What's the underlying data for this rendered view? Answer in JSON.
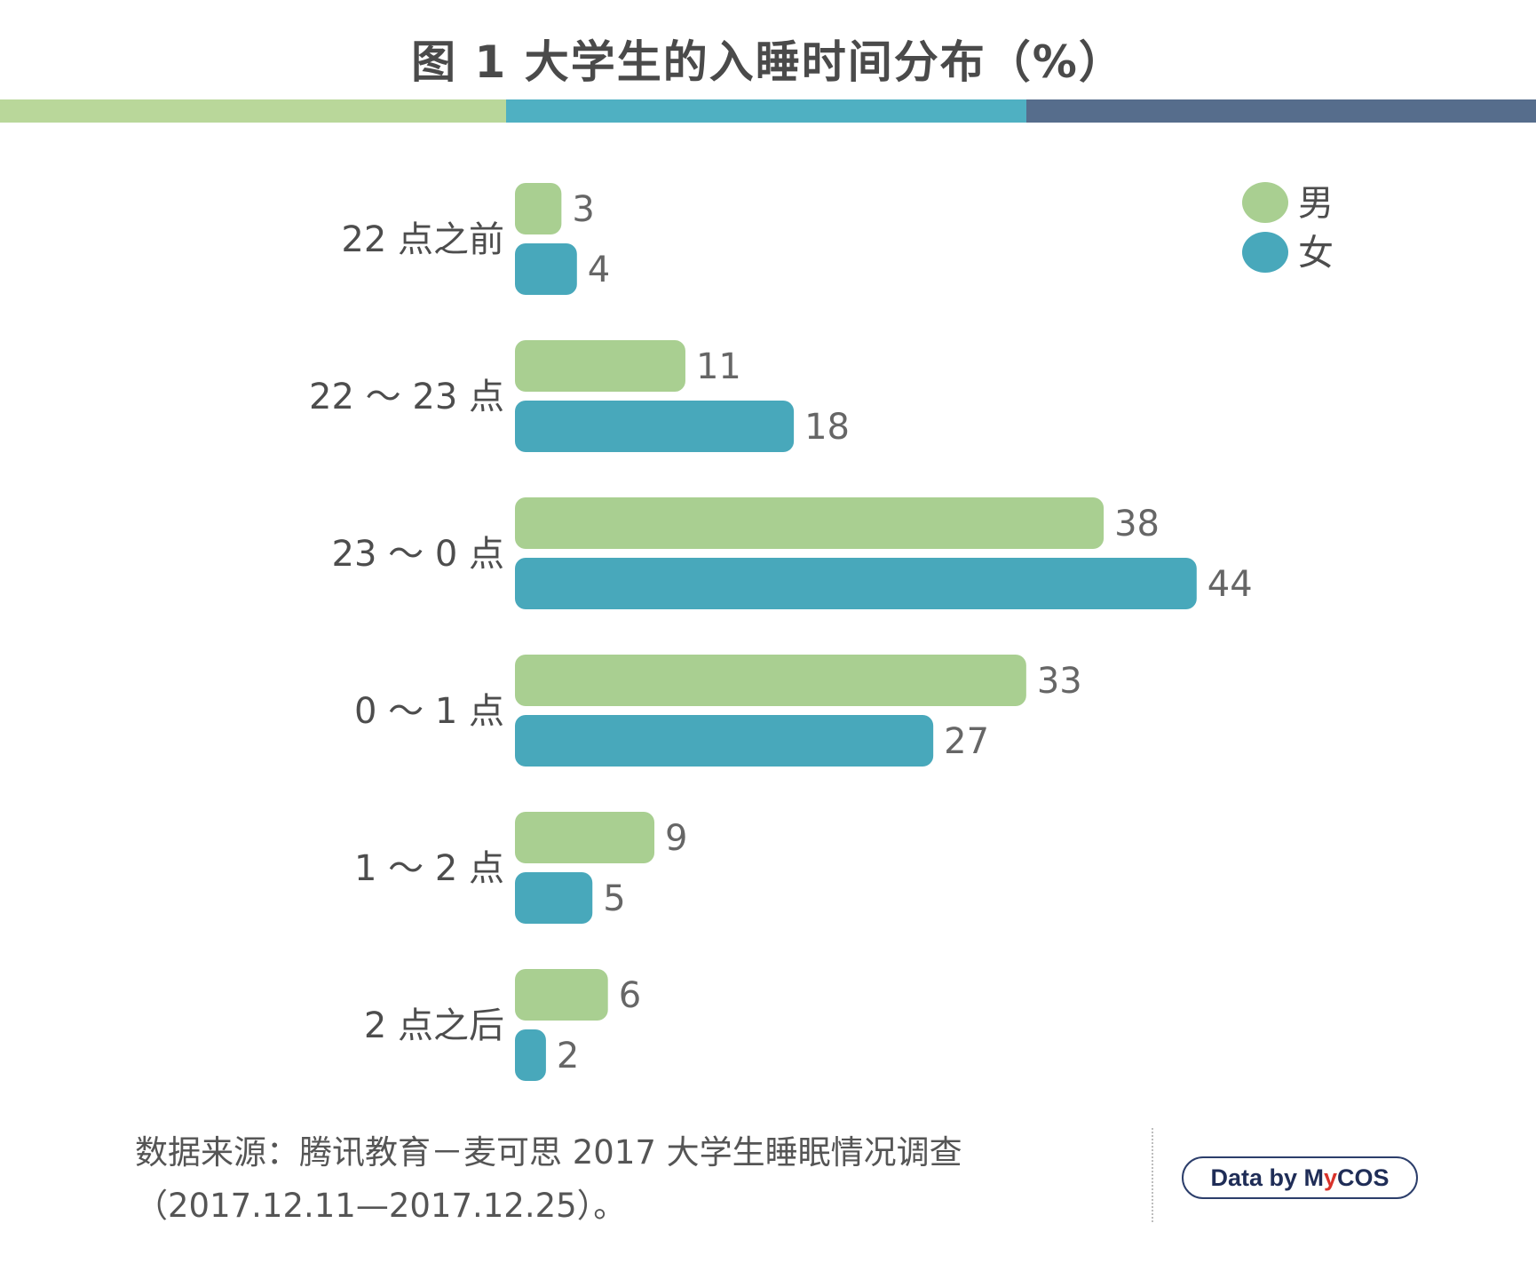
{
  "chart_data": {
    "type": "bar",
    "orientation": "horizontal",
    "title": "图 1  大学生的入睡时间分布（%）",
    "categories": [
      "22 点之前",
      "22 ～ 23 点",
      "23 ～ 0 点",
      "0 ～ 1 点",
      "1 ～ 2 点",
      "2 点之后"
    ],
    "series": [
      {
        "name": "男",
        "color": "#a9cf91",
        "values": [
          3,
          11,
          38,
          33,
          9,
          6
        ]
      },
      {
        "name": "女",
        "color": "#48a8bb",
        "values": [
          4,
          18,
          44,
          27,
          5,
          2
        ]
      }
    ],
    "xlim": [
      0,
      44
    ],
    "grid": false,
    "legend_position": "top-right",
    "data_labels": true
  },
  "header": {
    "stripe_colors": [
      "#b9d79a",
      "#4fb0c2",
      "#566d8c"
    ]
  },
  "footer": {
    "source_line1": "数据来源：腾讯教育－麦可思 2017 大学生睡眠情况调查",
    "source_line2": "（2017.12.11—2017.12.25）。",
    "credit_prefix": "Data by ",
    "credit_brand_m": "M",
    "credit_brand_y": "y",
    "credit_brand_rest": "COS"
  }
}
